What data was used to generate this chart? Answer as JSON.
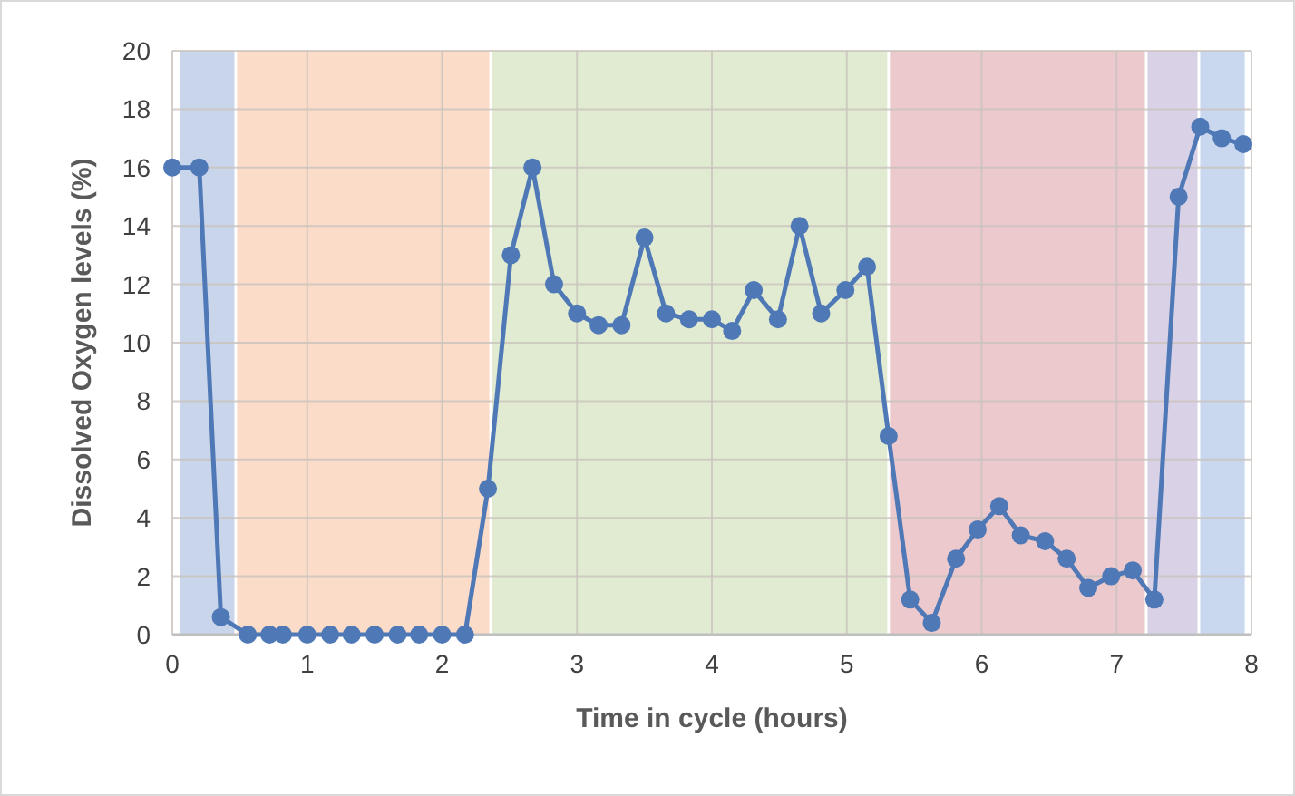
{
  "chart_data": {
    "type": "line",
    "xlabel": "Time in cycle (hours)",
    "ylabel": "Dissolved Oxygen levels (%)",
    "x": [
      0,
      0.2,
      0.36,
      0.56,
      0.72,
      0.82,
      1.0,
      1.17,
      1.33,
      1.5,
      1.67,
      1.83,
      2.0,
      2.17,
      2.34,
      2.51,
      2.67,
      2.83,
      3.0,
      3.16,
      3.33,
      3.5,
      3.66,
      3.83,
      4.0,
      4.15,
      4.31,
      4.49,
      4.65,
      4.81,
      4.99,
      5.15,
      5.31,
      5.47,
      5.63,
      5.81,
      5.97,
      6.13,
      6.29,
      6.47,
      6.63,
      6.79,
      6.96,
      7.12,
      7.28,
      7.46,
      7.62,
      7.78,
      7.94
    ],
    "series": [
      {
        "color": "#4f78b6",
        "values": [
          16,
          16,
          0.6,
          0,
          0,
          0,
          0,
          0,
          0,
          0,
          0,
          0,
          0,
          0,
          5,
          13,
          16,
          12,
          11,
          10.6,
          10.6,
          13.6,
          11,
          10.8,
          10.8,
          10.4,
          11.8,
          10.8,
          14,
          11,
          11.8,
          12.6,
          6.8,
          1.2,
          0.4,
          2.6,
          3.6,
          4.4,
          3.4,
          3.2,
          2.6,
          1.6,
          2,
          2.2,
          1.2,
          15,
          17.4,
          17,
          16.8
        ]
      }
    ],
    "xlim": [
      0,
      8
    ],
    "xticks": [
      0,
      1,
      2,
      3,
      4,
      5,
      6,
      7,
      8
    ],
    "ylim": [
      0,
      20
    ],
    "yticks": [
      0,
      2,
      4,
      6,
      8,
      10,
      12,
      14,
      16,
      18,
      20
    ],
    "grid": true,
    "marker": "circle",
    "line_style": "solid",
    "bands": [
      {
        "axis": "x",
        "from": 0.06,
        "to": 0.46,
        "color": "#c8d5ea"
      },
      {
        "axis": "x",
        "from": 0.48,
        "to": 2.35,
        "color": "#fbdcc8"
      },
      {
        "axis": "x",
        "from": 2.37,
        "to": 5.3,
        "color": "#e1ebd2"
      },
      {
        "axis": "x",
        "from": 5.32,
        "to": 7.21,
        "color": "#ebc9cd"
      },
      {
        "axis": "x",
        "from": 7.23,
        "to": 7.6,
        "color": "#d9d1e6"
      },
      {
        "axis": "x",
        "from": 7.62,
        "to": 7.95,
        "color": "#c9d8ee"
      }
    ]
  }
}
